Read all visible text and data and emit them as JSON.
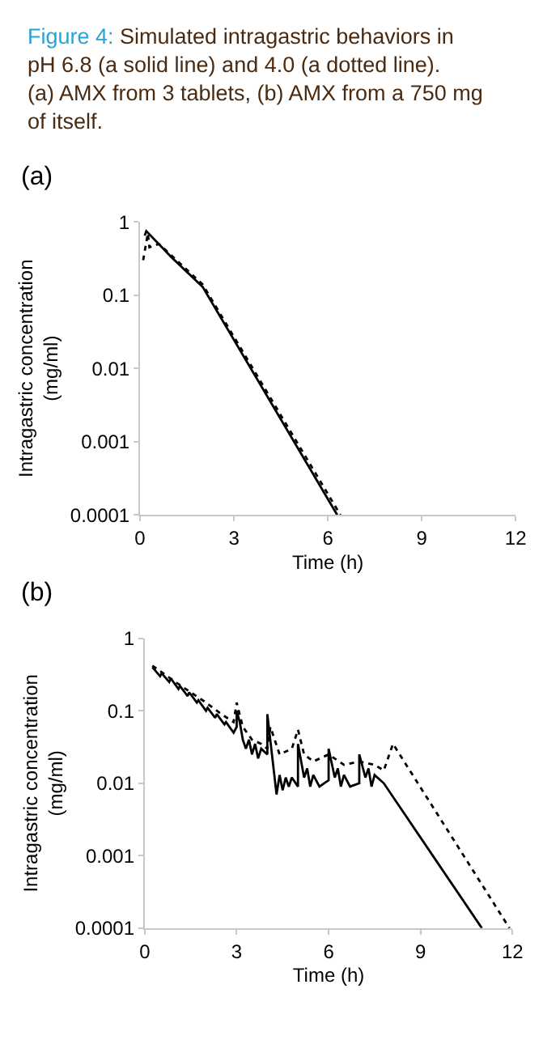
{
  "chart_data": [
    {
      "type": "line",
      "title": "(a)",
      "annotations": [
        "Figure 4: Simulated intragastric behaviors in pH 6.8 (a solid line) and 4.0 (a dotted line). (a) AMX from 3 tablets, (b) AMX from a 750 mg of itself."
      ],
      "xlabel": "Time (h)",
      "ylabel": "Intragastric concentration\n(mg/ml)",
      "log": "y",
      "xlim": [
        0,
        12
      ],
      "xticks": [
        0,
        3,
        6,
        9,
        12
      ],
      "ylim": [
        0.0001,
        1
      ],
      "yticks": [
        1,
        0.1,
        0.01,
        0.001,
        0.0001
      ],
      "series": [
        {
          "color": "#000000",
          "line_style": "solid",
          "x": [
            0.15,
            0.2,
            0.6,
            1.0,
            2.0,
            6.3
          ],
          "values": [
            0.65,
            0.75,
            0.5,
            0.33,
            0.13,
            0.0001
          ]
        },
        {
          "color": "#000000",
          "line_style": "dotted",
          "x": [
            0.1,
            0.25,
            0.3,
            0.6,
            1.0,
            2.0,
            6.4
          ],
          "values": [
            0.3,
            0.7,
            0.45,
            0.5,
            0.35,
            0.14,
            0.0001
          ]
        }
      ]
    },
    {
      "type": "line",
      "title": "(b)",
      "xlabel": "Time (h)",
      "ylabel": "Intragastric concentration\n(mg/ml)",
      "log": "y",
      "xlim": [
        0,
        12
      ],
      "xticks": [
        0,
        3,
        6,
        9,
        12
      ],
      "ylim": [
        0.0001,
        1
      ],
      "yticks": [
        1,
        0.1,
        0.01,
        0.001,
        0.0001
      ],
      "series": [
        {
          "color": "#000000",
          "line_style": "solid",
          "x": [
            0.25,
            0.5,
            0.55,
            0.8,
            0.85,
            1.1,
            1.15,
            1.4,
            1.45,
            1.7,
            1.75,
            2.0,
            2.05,
            2.3,
            2.35,
            2.6,
            2.65,
            2.9,
            3.0,
            3.0,
            3.1,
            3.2,
            3.3,
            3.4,
            3.5,
            3.6,
            3.7,
            3.8,
            4.0,
            4.0,
            4.3,
            4.4,
            4.5,
            4.6,
            4.7,
            4.8,
            5.0,
            5.0,
            5.2,
            5.3,
            5.4,
            5.5,
            5.7,
            6.0,
            6.0,
            6.2,
            6.3,
            6.4,
            6.5,
            6.7,
            7.0,
            7.0,
            7.2,
            7.3,
            7.4,
            7.5,
            7.8,
            11.0
          ],
          "values": [
            0.4,
            0.3,
            0.33,
            0.25,
            0.28,
            0.2,
            0.22,
            0.16,
            0.18,
            0.13,
            0.14,
            0.1,
            0.11,
            0.08,
            0.09,
            0.065,
            0.07,
            0.05,
            0.06,
            0.1,
            0.07,
            0.04,
            0.03,
            0.04,
            0.025,
            0.035,
            0.022,
            0.03,
            0.025,
            0.09,
            0.007,
            0.013,
            0.008,
            0.012,
            0.009,
            0.012,
            0.009,
            0.035,
            0.012,
            0.016,
            0.009,
            0.013,
            0.009,
            0.011,
            0.03,
            0.012,
            0.016,
            0.009,
            0.013,
            0.009,
            0.01,
            0.025,
            0.012,
            0.016,
            0.009,
            0.013,
            0.01,
            0.0001
          ]
        },
        {
          "color": "#000000",
          "line_style": "dotted",
          "x": [
            0.25,
            0.6,
            1.0,
            1.5,
            2.0,
            2.5,
            2.9,
            3.0,
            3.2,
            3.5,
            3.8,
            4.0,
            4.1,
            4.4,
            4.8,
            5.0,
            5.2,
            5.5,
            6.0,
            6.5,
            7.0,
            7.5,
            7.8,
            8.1,
            11.9
          ],
          "values": [
            0.42,
            0.33,
            0.25,
            0.18,
            0.13,
            0.09,
            0.07,
            0.13,
            0.06,
            0.04,
            0.035,
            0.03,
            0.06,
            0.025,
            0.03,
            0.055,
            0.025,
            0.02,
            0.025,
            0.018,
            0.02,
            0.018,
            0.015,
            0.035,
            0.0001
          ]
        }
      ]
    }
  ]
}
